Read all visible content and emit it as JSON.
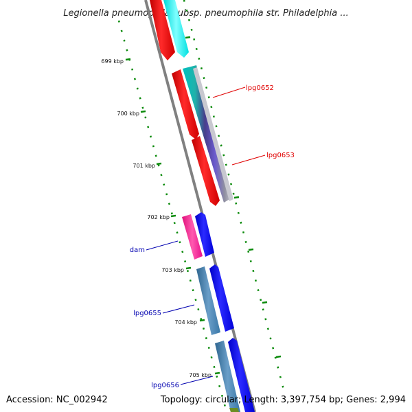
{
  "map": {
    "title": "Legionella pneumophila subsp. pneumophila str. Philadelphia ...",
    "accession": "Accession: NC_002942",
    "summary": "Topology: circular; Length: 3,397,754 bp; Genes: 2,994"
  },
  "ticks": [
    "699 kbp",
    "700 kbp",
    "701 kbp",
    "702 kbp",
    "703 kbp",
    "704 kbp",
    "705 kbp"
  ],
  "gene_labels": [
    {
      "text": "lpg0652",
      "color": "#e00000"
    },
    {
      "text": "lpg0653",
      "color": "#e00000"
    },
    {
      "text": "dam",
      "color": "#0000b0"
    },
    {
      "text": "lpg0655",
      "color": "#0000b0"
    },
    {
      "text": "lpg0656",
      "color": "#0000b0"
    }
  ],
  "colors": {
    "backbone": "#808080",
    "tick": "#0a8a0a",
    "red_gene": "#ff0000",
    "cyan_gene": "#00ffff",
    "blue_gene": "#0000ff",
    "magenta_gene": "#ff1493",
    "steel_gene": "#4682b4",
    "olive_gene": "#6b8e23"
  }
}
